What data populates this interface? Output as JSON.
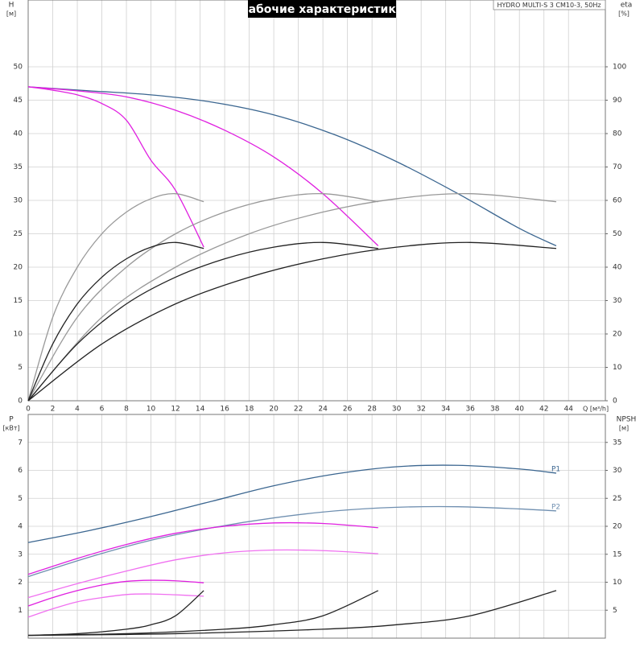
{
  "chart_data": [
    {
      "type": "line",
      "title": "Рабочие характеристики",
      "subtitle": "HYDRO MULTI-S 3 CM10-3, 50Hz",
      "ylabel": "H",
      "yunit": "[м]",
      "y2label": "eta",
      "y2unit": "[%]",
      "xlabel": "Q [м³/h]",
      "xlim": [
        0,
        47
      ],
      "ylim": [
        0,
        60
      ],
      "y2lim": [
        0,
        120
      ],
      "xticks": [
        0,
        2,
        4,
        6,
        8,
        10,
        12,
        14,
        16,
        18,
        20,
        22,
        24,
        26,
        28,
        30,
        32,
        34,
        36,
        38,
        40,
        42,
        44
      ],
      "yticks": [
        0,
        5,
        10,
        15,
        20,
        25,
        30,
        35,
        40,
        45,
        50
      ],
      "y2ticks": [
        0,
        10,
        20,
        30,
        40,
        50,
        60,
        70,
        80,
        90,
        100
      ],
      "grid": true,
      "series": [
        {
          "color": "#3b6690",
          "x": [
            0,
            5,
            10,
            15,
            20,
            25,
            30,
            35,
            40,
            43
          ],
          "values": [
            47,
            46.4,
            45.8,
            44.7,
            42.8,
            39.8,
            35.8,
            31,
            25.8,
            23.2
          ]
        },
        {
          "color": "#e020e0",
          "x": [
            0,
            2,
            4,
            6,
            8,
            10,
            12,
            14.3
          ],
          "values": [
            47,
            46.5,
            45.8,
            44.5,
            42,
            36,
            31.5,
            23
          ]
        },
        {
          "color": "#e020e0",
          "x": [
            0,
            4,
            8,
            12,
            16,
            20,
            24,
            28.5
          ],
          "values": [
            47,
            46.4,
            45.5,
            43.5,
            40.5,
            36.5,
            31,
            23.2
          ]
        },
        {
          "color": "#999999",
          "axis": "y2",
          "x": [
            0,
            2,
            4,
            6,
            8,
            10,
            12,
            14.3
          ],
          "values": [
            0,
            25,
            40,
            50,
            56.5,
            60.5,
            62,
            59.6
          ]
        },
        {
          "color": "#999999",
          "axis": "y2",
          "x": [
            0,
            4,
            8,
            12,
            16,
            20,
            24,
            28.5
          ],
          "values": [
            0,
            25,
            40,
            50,
            56.5,
            60.5,
            62,
            59.6
          ]
        },
        {
          "color": "#999999",
          "axis": "y2",
          "x": [
            0,
            6,
            12,
            18,
            24,
            30,
            36,
            43
          ],
          "values": [
            0,
            25,
            40,
            50,
            56.5,
            60.5,
            62,
            59.6
          ]
        },
        {
          "color": "#222222",
          "axis": "y2",
          "x": [
            0,
            2,
            4,
            6,
            8,
            10,
            12,
            14.3
          ],
          "values": [
            0,
            17,
            29,
            37,
            42.5,
            46,
            47.4,
            45.6
          ]
        },
        {
          "color": "#222222",
          "axis": "y2",
          "x": [
            0,
            4,
            8,
            12,
            16,
            20,
            24,
            28.5
          ],
          "values": [
            0,
            17,
            29,
            37,
            42.5,
            46,
            47.4,
            45.6
          ]
        },
        {
          "color": "#222222",
          "axis": "y2",
          "x": [
            0,
            6,
            12,
            18,
            24,
            30,
            36,
            43
          ],
          "values": [
            0,
            17,
            29,
            37,
            42.5,
            46,
            47.4,
            45.6
          ]
        }
      ]
    },
    {
      "type": "line",
      "ylabel": "P",
      "yunit": "[кВт]",
      "y2label": "NPSH",
      "y2unit": "[м]",
      "xlim": [
        0,
        47
      ],
      "ylim": [
        0,
        8
      ],
      "y2lim": [
        0,
        40
      ],
      "xticks": [
        0,
        2,
        4,
        6,
        8,
        10,
        12,
        14,
        16,
        18,
        20,
        22,
        24,
        26,
        28,
        30,
        32,
        34,
        36,
        38,
        40,
        42,
        44
      ],
      "yticks": [
        1,
        2,
        3,
        4,
        5,
        6,
        7
      ],
      "y2ticks": [
        5,
        10,
        15,
        20,
        25,
        30,
        35
      ],
      "grid": true,
      "series": [
        {
          "name": "P1",
          "color": "#3b6690",
          "x": [
            0,
            5,
            10,
            15,
            20,
            25,
            30,
            35,
            40,
            43
          ],
          "values": [
            3.42,
            3.85,
            4.35,
            4.9,
            5.45,
            5.87,
            6.13,
            6.18,
            6.05,
            5.9
          ]
        },
        {
          "name": "P2",
          "color": "#6f8fb0",
          "x": [
            0,
            5,
            10,
            15,
            20,
            25,
            30,
            35,
            40,
            43
          ],
          "values": [
            2.2,
            2.9,
            3.5,
            3.95,
            4.3,
            4.55,
            4.68,
            4.7,
            4.62,
            4.55
          ]
        },
        {
          "color": "#e020e0",
          "x": [
            0,
            4,
            8,
            12,
            16,
            20,
            24,
            28.5
          ],
          "values": [
            2.28,
            2.85,
            3.35,
            3.75,
            4,
            4.12,
            4.1,
            3.95
          ]
        },
        {
          "color": "#f070f0",
          "x": [
            0,
            4,
            8,
            12,
            16,
            20,
            24,
            28.5
          ],
          "values": [
            1.45,
            1.95,
            2.4,
            2.8,
            3.05,
            3.15,
            3.13,
            3.02
          ]
        },
        {
          "color": "#e020e0",
          "x": [
            0,
            2,
            4,
            6,
            8,
            10,
            12,
            14.3
          ],
          "values": [
            1.15,
            1.45,
            1.7,
            1.9,
            2.03,
            2.07,
            2.05,
            1.98
          ]
        },
        {
          "color": "#f070f0",
          "x": [
            0,
            2,
            4,
            6,
            8,
            10,
            12,
            14.3
          ],
          "values": [
            0.75,
            1.05,
            1.3,
            1.45,
            1.56,
            1.58,
            1.55,
            1.5
          ]
        },
        {
          "color": "#222222",
          "axis": "y2",
          "x": [
            0,
            4,
            8,
            10,
            12,
            14.3
          ],
          "values": [
            0.5,
            0.8,
            1.6,
            2.4,
            4,
            8.5
          ]
        },
        {
          "color": "#222222",
          "axis": "y2",
          "x": [
            0,
            8,
            16,
            20,
            24,
            28.5
          ],
          "values": [
            0.5,
            0.8,
            1.6,
            2.4,
            4,
            8.5
          ]
        },
        {
          "color": "#222222",
          "axis": "y2",
          "x": [
            0,
            12,
            24,
            30,
            36,
            43
          ],
          "values": [
            0.5,
            0.8,
            1.6,
            2.4,
            4,
            8.5
          ]
        }
      ]
    }
  ]
}
